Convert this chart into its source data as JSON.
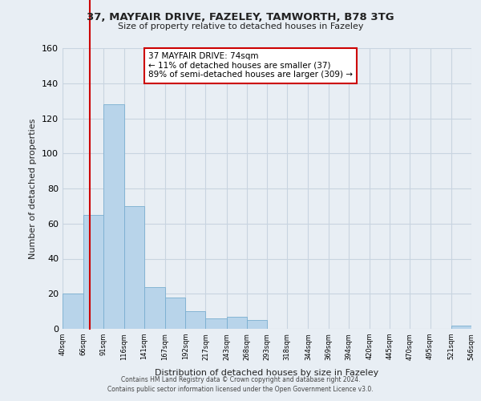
{
  "title": "37, MAYFAIR DRIVE, FAZELEY, TAMWORTH, B78 3TG",
  "subtitle": "Size of property relative to detached houses in Fazeley",
  "xlabel": "Distribution of detached houses by size in Fazeley",
  "ylabel": "Number of detached properties",
  "bar_edges": [
    40,
    66,
    91,
    116,
    141,
    167,
    192,
    217,
    243,
    268,
    293,
    318,
    344,
    369,
    394,
    420,
    445,
    470,
    495,
    521,
    546
  ],
  "bar_heights": [
    20,
    65,
    128,
    70,
    24,
    18,
    10,
    6,
    7,
    5,
    0,
    0,
    0,
    0,
    0,
    0,
    0,
    0,
    0,
    2,
    0
  ],
  "bar_color": "#b8d4ea",
  "ylim": [
    0,
    160
  ],
  "yticks": [
    0,
    20,
    40,
    60,
    80,
    100,
    120,
    140,
    160
  ],
  "xtick_labels": [
    "40sqm",
    "66sqm",
    "91sqm",
    "116sqm",
    "141sqm",
    "167sqm",
    "192sqm",
    "217sqm",
    "243sqm",
    "268sqm",
    "293sqm",
    "318sqm",
    "344sqm",
    "369sqm",
    "394sqm",
    "420sqm",
    "445sqm",
    "470sqm",
    "495sqm",
    "521sqm",
    "546sqm"
  ],
  "property_line_x": 74,
  "property_line_color": "#cc0000",
  "annotation_text": "37 MAYFAIR DRIVE: 74sqm\n← 11% of detached houses are smaller (37)\n89% of semi-detached houses are larger (309) →",
  "annotation_box_facecolor": "#ffffff",
  "annotation_box_edgecolor": "#cc0000",
  "grid_color": "#c8d4e0",
  "bg_color": "#e8eef4",
  "footer_line1": "Contains HM Land Registry data © Crown copyright and database right 2024.",
  "footer_line2": "Contains public sector information licensed under the Open Government Licence v3.0."
}
